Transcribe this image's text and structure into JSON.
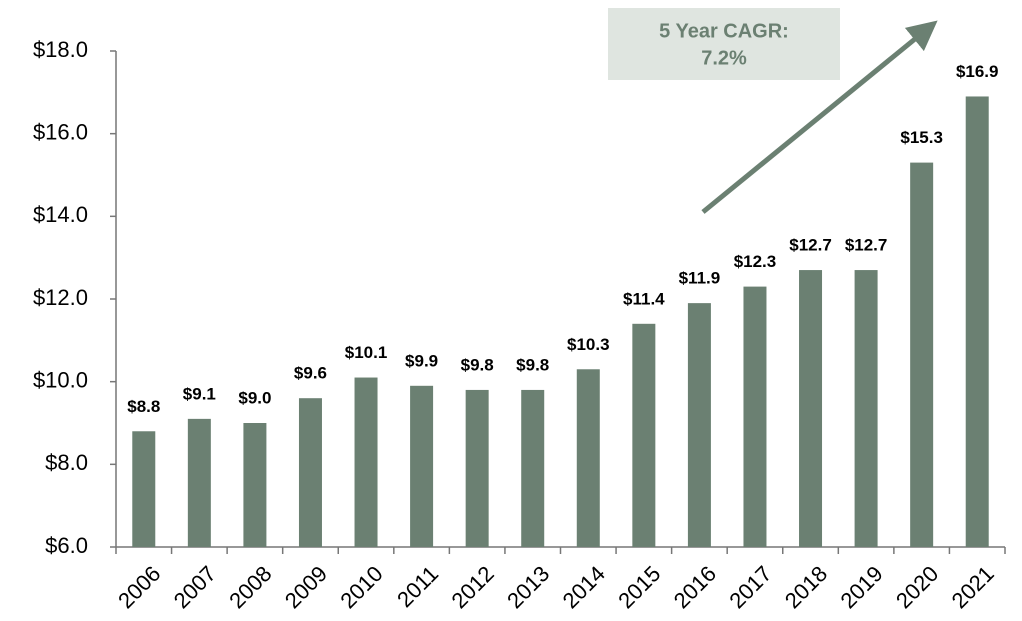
{
  "chart_data": {
    "type": "bar",
    "categories": [
      "2006",
      "2007",
      "2008",
      "2009",
      "2010",
      "2011",
      "2012",
      "2013",
      "2014",
      "2015",
      "2016",
      "2017",
      "2018",
      "2019",
      "2020",
      "2021"
    ],
    "values": [
      8.8,
      9.1,
      9.0,
      9.6,
      10.1,
      9.9,
      9.8,
      9.8,
      10.3,
      11.4,
      11.9,
      12.3,
      12.7,
      12.7,
      15.3,
      16.9
    ],
    "value_labels": [
      "$8.8",
      "$9.1",
      "$9.0",
      "$9.6",
      "$10.1",
      "$9.9",
      "$9.8",
      "$9.8",
      "$10.3",
      "$11.4",
      "$11.9",
      "$12.3",
      "$12.7",
      "$12.7",
      "$15.3",
      "$16.9"
    ],
    "color": "#6b8072",
    "ylim": [
      6,
      18
    ],
    "yticks": [
      {
        "value": 6,
        "label": "$6.0"
      },
      {
        "value": 8,
        "label": "$8.0"
      },
      {
        "value": 10,
        "label": "$10.0"
      },
      {
        "value": 12,
        "label": "$12.0"
      },
      {
        "value": 14,
        "label": "$14.0"
      },
      {
        "value": 16,
        "label": "$16.0"
      },
      {
        "value": 18,
        "label": "$18.0"
      }
    ],
    "grid": false,
    "annotation": [
      "5 Year CAGR:",
      "7.2%"
    ]
  }
}
